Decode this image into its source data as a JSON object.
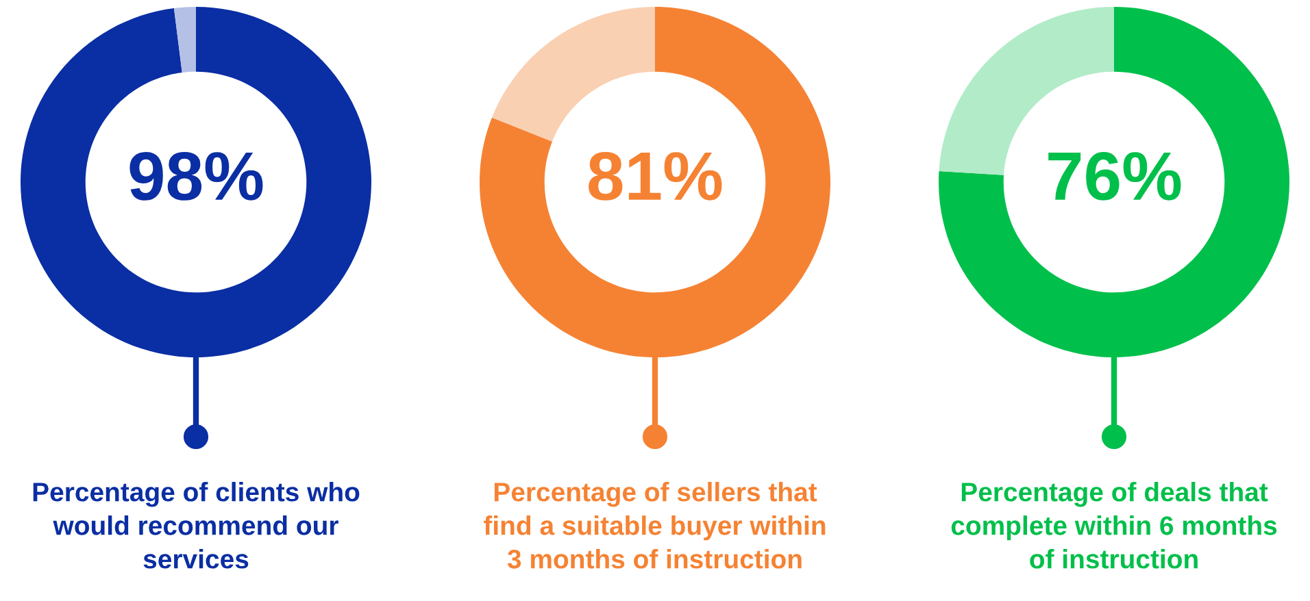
{
  "chart_data": [
    {
      "type": "donut",
      "title": "Percentage of clients who\nwould recommend our\nservices",
      "categories": [
        null,
        null
      ],
      "values": [
        98,
        2
      ],
      "colors": [
        "#0a2ea3",
        "#b5c0e6"
      ],
      "value_labels": [
        "98%",
        null
      ]
    },
    {
      "type": "donut",
      "title": "Percentage of sellers that\nfind a suitable buyer within\n3 months of instruction",
      "categories": [
        null,
        null
      ],
      "values": [
        81,
        19
      ],
      "colors": [
        "#f58233",
        "#fad0b2"
      ],
      "value_labels": [
        "81%",
        null
      ]
    },
    {
      "type": "donut",
      "title": "Percentage of deals that\ncomplete within 6 months\nof instruction",
      "categories": [
        null,
        null
      ],
      "values": [
        76,
        24
      ],
      "colors": [
        "#00bf4a",
        "#b2ebc8"
      ],
      "value_labels": [
        "76%",
        null
      ]
    }
  ]
}
